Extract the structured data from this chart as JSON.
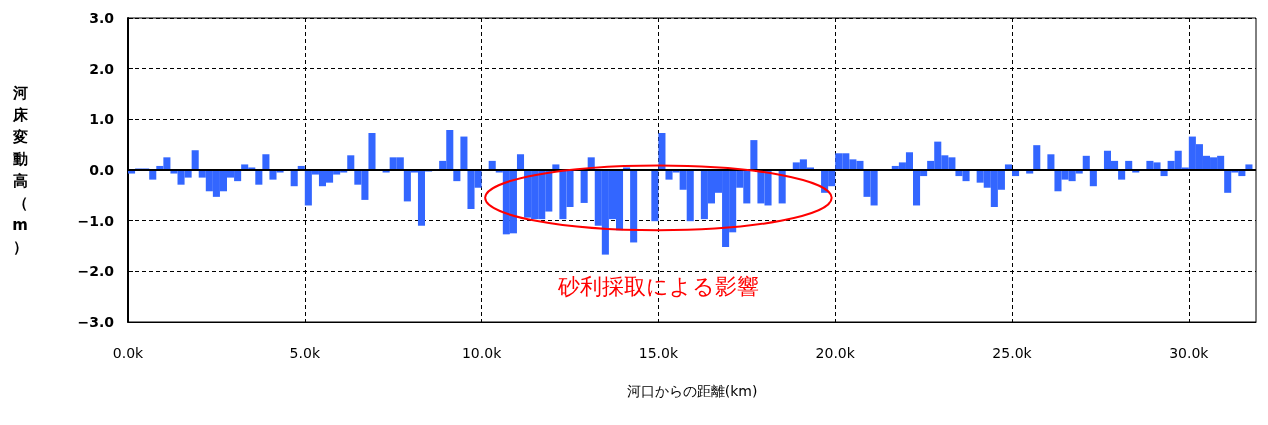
{
  "chart_data": {
    "type": "bar",
    "xlabel": "河口からの距離(km)",
    "ylabel": "河床変動高（m）",
    "annotations": [
      "砂利採取による影響"
    ],
    "color": "#3366ff",
    "xlim": [
      0,
      31.9
    ],
    "xticks": [
      {
        "value": 0,
        "label": "0.0k"
      },
      {
        "value": 5,
        "label": "5.0k"
      },
      {
        "value": 10,
        "label": "10.0k"
      },
      {
        "value": 15,
        "label": "15.0k"
      },
      {
        "value": 20,
        "label": "20.0k"
      },
      {
        "value": 25,
        "label": "25.0k"
      },
      {
        "value": 30,
        "label": "30.0k"
      }
    ],
    "ylim": [
      -3,
      3
    ],
    "yticks": [
      {
        "value": -3,
        "label": "−3.0"
      },
      {
        "value": -2,
        "label": "−2.0"
      },
      {
        "value": -1,
        "label": "−1.0"
      },
      {
        "value": 0,
        "label": "0.0"
      },
      {
        "value": 1,
        "label": "1.0"
      },
      {
        "value": 2,
        "label": "2.0"
      },
      {
        "value": 3,
        "label": "3.0"
      }
    ],
    "grid": true,
    "ref_lines": [
      {
        "axis": "y",
        "value": 0,
        "color": "#000000"
      }
    ],
    "x": [
      0.1,
      0.3,
      0.5,
      0.7,
      0.9,
      1.1,
      1.3,
      1.5,
      1.7,
      1.9,
      2.1,
      2.3,
      2.5,
      2.7,
      2.9,
      3.1,
      3.3,
      3.5,
      3.7,
      3.9,
      4.1,
      4.3,
      4.5,
      4.7,
      4.9,
      5.1,
      5.3,
      5.5,
      5.7,
      5.9,
      6.1,
      6.3,
      6.5,
      6.7,
      6.9,
      7.1,
      7.3,
      7.5,
      7.7,
      7.9,
      8.1,
      8.3,
      8.5,
      8.7,
      8.9,
      9.1,
      9.3,
      9.5,
      9.7,
      9.9,
      10.1,
      10.3,
      10.5,
      10.7,
      10.9,
      11.1,
      11.3,
      11.5,
      11.7,
      11.9,
      12.1,
      12.3,
      12.5,
      12.7,
      12.9,
      13.1,
      13.3,
      13.5,
      13.7,
      13.9,
      14.1,
      14.3,
      14.5,
      14.7,
      14.9,
      15.1,
      15.3,
      15.5,
      15.7,
      15.9,
      16.1,
      16.3,
      16.5,
      16.7,
      16.9,
      17.1,
      17.3,
      17.5,
      17.7,
      17.9,
      18.1,
      18.3,
      18.5,
      18.7,
      18.9,
      19.1,
      19.3,
      19.5,
      19.7,
      19.9,
      20.1,
      20.3,
      20.5,
      20.7,
      20.9,
      21.1,
      21.3,
      21.5,
      21.7,
      21.9,
      22.1,
      22.3,
      22.5,
      22.7,
      22.9,
      23.1,
      23.3,
      23.5,
      23.7,
      23.9,
      24.1,
      24.3,
      24.5,
      24.7,
      24.9,
      25.1,
      25.3,
      25.5,
      25.7,
      25.9,
      26.1,
      26.3,
      26.5,
      26.7,
      26.9,
      27.1,
      27.3,
      27.5,
      27.7,
      27.9,
      28.1,
      28.3,
      28.5,
      28.7,
      28.9,
      29.1,
      29.3,
      29.5,
      29.7,
      29.9,
      30.1,
      30.3,
      30.5,
      30.7,
      30.9,
      31.1,
      31.3,
      31.5,
      31.7
    ],
    "values": [
      -0.07,
      0.03,
      0.03,
      -0.19,
      0.08,
      0.25,
      -0.07,
      -0.29,
      -0.15,
      0.39,
      -0.15,
      -0.42,
      -0.53,
      -0.42,
      -0.15,
      -0.22,
      0.11,
      0.05,
      -0.29,
      0.31,
      -0.19,
      -0.05,
      0,
      -0.32,
      0.08,
      -0.7,
      -0.09,
      -0.32,
      -0.25,
      -0.09,
      -0.05,
      0.29,
      -0.29,
      -0.59,
      0.73,
      0,
      -0.05,
      0.25,
      0.25,
      -0.62,
      -0.05,
      -1.1,
      -0.03,
      0,
      0.18,
      0.79,
      -0.22,
      0.66,
      -0.77,
      -0.35,
      0,
      0.18,
      -0.05,
      -1.27,
      -1.25,
      0.31,
      -0.94,
      -0.97,
      -0.97,
      -0.82,
      0.11,
      -0.97,
      -0.73,
      0,
      -0.65,
      0.25,
      -1.1,
      -1.67,
      -0.97,
      -1.19,
      0.05,
      -1.43,
      0,
      0,
      -1.01,
      0.73,
      -0.19,
      -0.05,
      -0.39,
      -1.01,
      0,
      -0.97,
      -0.66,
      -0.45,
      -1.52,
      -1.23,
      -0.35,
      -0.66,
      0.59,
      -0.66,
      -0.7,
      0,
      -0.66,
      0,
      0.15,
      0.21,
      0.05,
      0,
      -0.45,
      -0.32,
      0.33,
      0.33,
      0.21,
      0.18,
      -0.53,
      -0.7,
      0,
      0,
      0.08,
      0.15,
      0.35,
      -0.7,
      -0.12,
      0.18,
      0.56,
      0.29,
      0.25,
      -0.12,
      -0.22,
      0,
      -0.25,
      -0.35,
      -0.73,
      -0.39,
      0.11,
      -0.12,
      0,
      -0.07,
      0.49,
      0,
      0.31,
      -0.42,
      -0.19,
      -0.22,
      -0.07,
      0.28,
      -0.32,
      0,
      0.38,
      0.18,
      -0.19,
      0.18,
      -0.05,
      0,
      0.18,
      0.15,
      -0.12,
      0.18,
      0.38,
      0.05,
      0.66,
      0.51,
      0.28,
      0.25,
      0.28,
      -0.45,
      -0.05,
      -0.12,
      0.11
    ]
  }
}
